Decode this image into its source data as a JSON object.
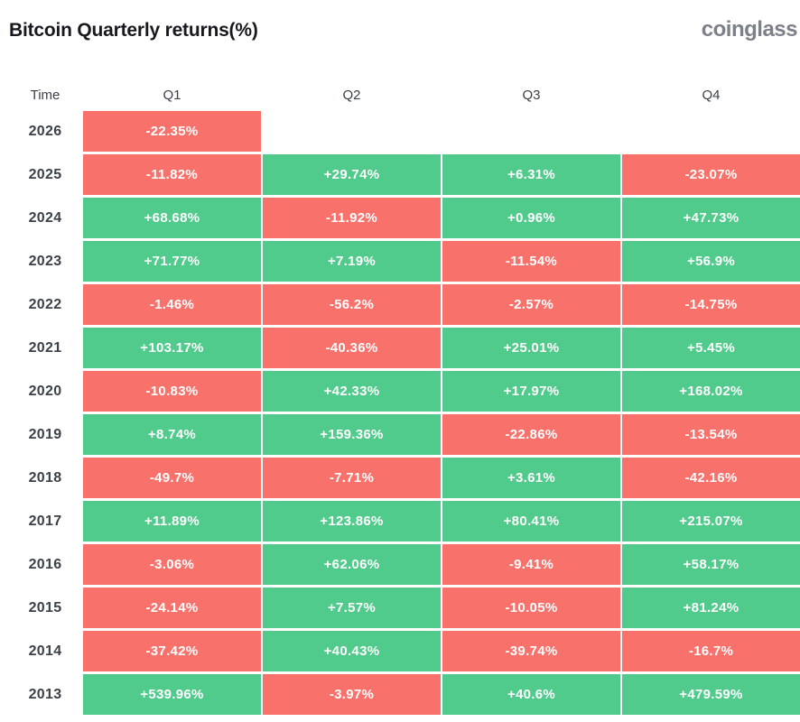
{
  "header": {
    "title": "Bitcoin Quarterly returns(%)",
    "logo": "coinglass"
  },
  "colors": {
    "positive": "#50cb8c",
    "negative": "#f9716b",
    "text_dark": "#3b4049",
    "title": "#17191e",
    "logo_gray": "#7d8088",
    "cell_text": "#ffffff"
  },
  "table": {
    "columns": [
      "Time",
      "Q1",
      "Q2",
      "Q3",
      "Q4"
    ],
    "rows": [
      {
        "year": "2026",
        "cells": [
          "-22.35%",
          null,
          null,
          null
        ]
      },
      {
        "year": "2025",
        "cells": [
          "-11.82%",
          "+29.74%",
          "+6.31%",
          "-23.07%"
        ]
      },
      {
        "year": "2024",
        "cells": [
          "+68.68%",
          "-11.92%",
          "+0.96%",
          "+47.73%"
        ]
      },
      {
        "year": "2023",
        "cells": [
          "+71.77%",
          "+7.19%",
          "-11.54%",
          "+56.9%"
        ]
      },
      {
        "year": "2022",
        "cells": [
          "-1.46%",
          "-56.2%",
          "-2.57%",
          "-14.75%"
        ]
      },
      {
        "year": "2021",
        "cells": [
          "+103.17%",
          "-40.36%",
          "+25.01%",
          "+5.45%"
        ]
      },
      {
        "year": "2020",
        "cells": [
          "-10.83%",
          "+42.33%",
          "+17.97%",
          "+168.02%"
        ]
      },
      {
        "year": "2019",
        "cells": [
          "+8.74%",
          "+159.36%",
          "-22.86%",
          "-13.54%"
        ]
      },
      {
        "year": "2018",
        "cells": [
          "-49.7%",
          "-7.71%",
          "+3.61%",
          "-42.16%"
        ]
      },
      {
        "year": "2017",
        "cells": [
          "+11.89%",
          "+123.86%",
          "+80.41%",
          "+215.07%"
        ]
      },
      {
        "year": "2016",
        "cells": [
          "-3.06%",
          "+62.06%",
          "-9.41%",
          "+58.17%"
        ]
      },
      {
        "year": "2015",
        "cells": [
          "-24.14%",
          "+7.57%",
          "-10.05%",
          "+81.24%"
        ]
      },
      {
        "year": "2014",
        "cells": [
          "-37.42%",
          "+40.43%",
          "-39.74%",
          "-16.7%"
        ]
      },
      {
        "year": "2013",
        "cells": [
          "+539.96%",
          "-3.97%",
          "+40.6%",
          "+479.59%"
        ]
      }
    ]
  },
  "chart_data": {
    "type": "heatmap",
    "title": "Bitcoin Quarterly returns(%)",
    "categories": [
      "Q1",
      "Q2",
      "Q3",
      "Q4"
    ],
    "rows": [
      "2026",
      "2025",
      "2024",
      "2023",
      "2022",
      "2021",
      "2020",
      "2019",
      "2018",
      "2017",
      "2016",
      "2015",
      "2014",
      "2013"
    ],
    "values": [
      [
        -22.35,
        null,
        null,
        null
      ],
      [
        -11.82,
        29.74,
        6.31,
        -23.07
      ],
      [
        68.68,
        -11.92,
        0.96,
        47.73
      ],
      [
        71.77,
        7.19,
        -11.54,
        56.9
      ],
      [
        -1.46,
        -56.2,
        -2.57,
        -14.75
      ],
      [
        103.17,
        -40.36,
        25.01,
        5.45
      ],
      [
        -10.83,
        42.33,
        17.97,
        168.02
      ],
      [
        8.74,
        159.36,
        -22.86,
        -13.54
      ],
      [
        -49.7,
        -7.71,
        3.61,
        -42.16
      ],
      [
        11.89,
        123.86,
        80.41,
        215.07
      ],
      [
        -3.06,
        62.06,
        -9.41,
        58.17
      ],
      [
        -24.14,
        7.57,
        -10.05,
        81.24
      ],
      [
        -37.42,
        40.43,
        -39.74,
        -16.7
      ],
      [
        539.96,
        -3.97,
        40.6,
        479.59
      ]
    ],
    "legend": "none",
    "color_rule": "green if value >= 0, red if value < 0",
    "xlabel": "",
    "ylabel": "Time"
  }
}
